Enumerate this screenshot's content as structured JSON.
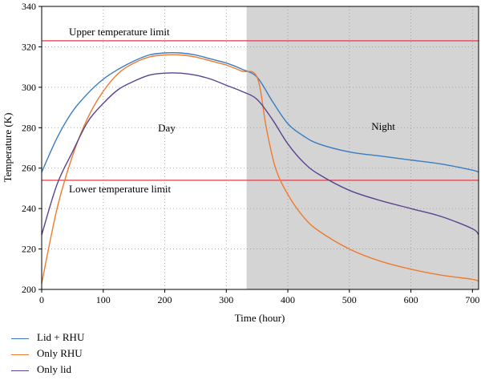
{
  "chart_data": {
    "type": "line",
    "xlabel": "Time (hour)",
    "ylabel": "Temperature (K)",
    "xlim": [
      0,
      710
    ],
    "ylim": [
      200,
      340
    ],
    "xticks": [
      0,
      100,
      200,
      300,
      400,
      500,
      600,
      700
    ],
    "yticks": [
      200,
      220,
      240,
      260,
      280,
      300,
      320,
      340
    ],
    "grid": "dotted",
    "shaded_region": {
      "x_start": 333,
      "x_end": 710,
      "color": "#d4d4d4",
      "label": "Night"
    },
    "day_label": "Day",
    "night_label": "Night",
    "reference_lines": [
      {
        "label": "Upper temperature limit",
        "y": 323,
        "color": "#e03c4a"
      },
      {
        "label": "Lower temperature limit",
        "y": 254,
        "color": "#e03c4a"
      }
    ],
    "series": [
      {
        "name": "Lid + RHU",
        "color": "#3a7cc0",
        "x": [
          0,
          25,
          50,
          75,
          100,
          125,
          150,
          175,
          200,
          225,
          250,
          275,
          300,
          325,
          350,
          375,
          400,
          425,
          450,
          500,
          550,
          600,
          650,
          700,
          710
        ],
        "y": [
          258,
          275,
          288,
          297,
          304,
          309,
          313,
          316,
          317,
          317,
          316,
          314,
          312,
          309,
          305,
          293,
          282,
          276,
          272,
          268,
          266,
          264,
          262,
          259,
          258
        ]
      },
      {
        "name": "Only RHU",
        "color": "#ef7a2d",
        "x": [
          0,
          25,
          50,
          75,
          100,
          125,
          150,
          175,
          200,
          225,
          250,
          275,
          300,
          325,
          350,
          365,
          380,
          400,
          425,
          450,
          500,
          550,
          600,
          650,
          700,
          710
        ],
        "y": [
          203,
          240,
          266,
          285,
          298,
          307,
          312,
          315,
          316,
          316,
          315,
          313,
          311,
          308,
          305,
          280,
          260,
          247,
          236,
          229,
          220,
          214,
          210,
          207,
          205,
          204
        ]
      },
      {
        "name": "Only lid",
        "color": "#5a4390",
        "x": [
          0,
          25,
          50,
          75,
          100,
          125,
          150,
          175,
          200,
          225,
          250,
          275,
          300,
          325,
          350,
          375,
          400,
          425,
          450,
          500,
          550,
          600,
          650,
          700,
          710
        ],
        "y": [
          227,
          252,
          268,
          283,
          292,
          299,
          303,
          306,
          307,
          307,
          306,
          304,
          301,
          298,
          294,
          284,
          272,
          263,
          257,
          249,
          244,
          240,
          236,
          230,
          227
        ]
      }
    ]
  }
}
